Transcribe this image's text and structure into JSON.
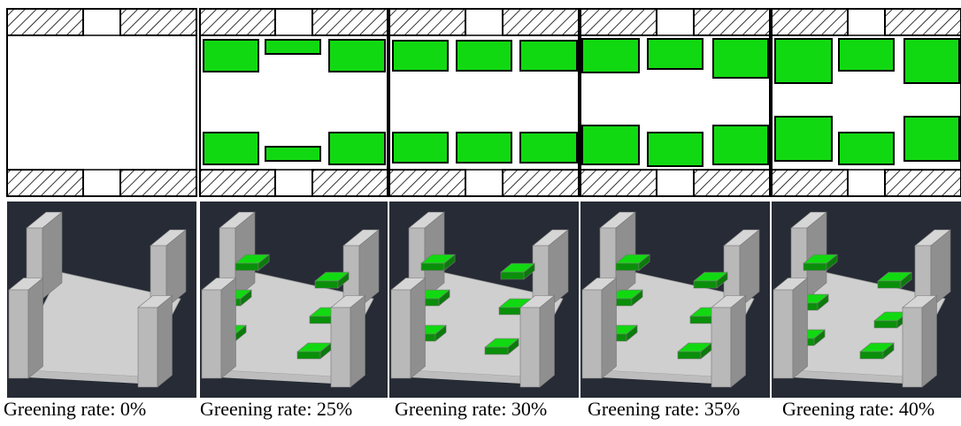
{
  "panels": [
    {
      "caption": "Greening rate: 0%",
      "greening_rate_pct": 0
    },
    {
      "caption": "Greening rate: 25%",
      "greening_rate_pct": 25
    },
    {
      "caption": "Greening rate: 30%",
      "greening_rate_pct": 30
    },
    {
      "caption": "Greening rate: 35%",
      "greening_rate_pct": 35
    },
    {
      "caption": "Greening rate: 40%",
      "greening_rate_pct": 40
    }
  ],
  "colors": {
    "green": "#11d911",
    "green_dark": "#0a8f0a",
    "hatch": "#000000",
    "render_bg": "#262b35",
    "building_light": "#d6d6d6",
    "building_mid": "#b9b9b9",
    "building_dark": "#8f8f8f",
    "ground": "#cfcfcf"
  }
}
